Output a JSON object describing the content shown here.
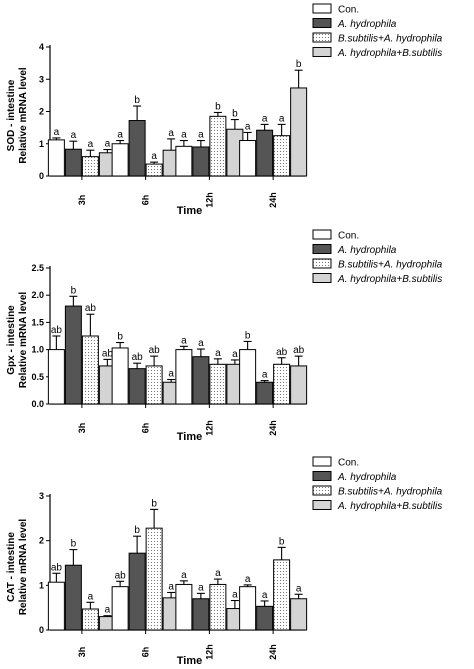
{
  "legend": [
    {
      "label": "Con.",
      "fill": "#ffffff",
      "pattern": "none",
      "italic": false
    },
    {
      "label": "A. hydrophila",
      "fill": "#555555",
      "pattern": "none",
      "italic": true
    },
    {
      "label": "B.subtilis+A. hydrophila",
      "fill": "#ffffff",
      "pattern": "dots",
      "italic": true
    },
    {
      "label": "A. hydrophila+B.subtilis",
      "fill": "#d4d4d4",
      "pattern": "none",
      "italic": true
    }
  ],
  "chart_data": [
    {
      "type": "bar",
      "ylabel_line1": "SOD - intestine",
      "ylabel_line2": "Relative mRNA level",
      "xlabel": "Time",
      "categories": [
        "3h",
        "6h",
        "12h",
        "24h"
      ],
      "ylim": [
        0,
        4
      ],
      "yticks": [
        0,
        1,
        2,
        3,
        4
      ],
      "series": [
        {
          "values": [
            1.12,
            1.0,
            0.92,
            1.1
          ],
          "errors": [
            0.06,
            0.1,
            0.18,
            0.25
          ],
          "sig": [
            "a",
            "a",
            "a",
            "a"
          ]
        },
        {
          "values": [
            0.83,
            1.72,
            0.9,
            1.42
          ],
          "errors": [
            0.25,
            0.45,
            0.2,
            0.18
          ],
          "sig": [
            "a",
            "b",
            "a",
            "a"
          ]
        },
        {
          "values": [
            0.6,
            0.37,
            1.85,
            1.25
          ],
          "errors": [
            0.2,
            0.06,
            0.12,
            0.35
          ],
          "sig": [
            "a",
            "a",
            "b",
            "a"
          ]
        },
        {
          "values": [
            0.72,
            0.8,
            1.45,
            2.73
          ],
          "errors": [
            0.1,
            0.35,
            0.3,
            0.55
          ],
          "sig": [
            "a",
            "a",
            "b",
            "b"
          ]
        }
      ]
    },
    {
      "type": "bar",
      "ylabel_line1": "Gpx - intestine",
      "ylabel_line2": "Relative mRNA level",
      "xlabel": "Time",
      "categories": [
        "3h",
        "6h",
        "12h",
        "24h"
      ],
      "ylim": [
        0,
        2.5
      ],
      "yticks": [
        0.0,
        0.5,
        1.0,
        1.5,
        2.0,
        2.5
      ],
      "series": [
        {
          "values": [
            1.0,
            1.03,
            1.0,
            1.0
          ],
          "errors": [
            0.25,
            0.1,
            0.06,
            0.15
          ],
          "sig": [
            "ab",
            "b",
            "a",
            "b"
          ]
        },
        {
          "values": [
            1.8,
            0.65,
            0.87,
            0.4
          ],
          "errors": [
            0.18,
            0.1,
            0.14,
            0.03
          ],
          "sig": [
            "b",
            "ab",
            "a",
            "a"
          ]
        },
        {
          "values": [
            1.25,
            0.7,
            0.73,
            0.73
          ],
          "errors": [
            0.4,
            0.18,
            0.1,
            0.12
          ],
          "sig": [
            "ab",
            "ab",
            "a",
            "ab"
          ]
        },
        {
          "values": [
            0.7,
            0.4,
            0.73,
            0.7
          ],
          "errors": [
            0.12,
            0.05,
            0.08,
            0.18
          ],
          "sig": [
            "ab",
            "a",
            "a",
            "ab"
          ]
        }
      ]
    },
    {
      "type": "bar",
      "ylabel_line1": "CAT - intestine",
      "ylabel_line2": "Relative mRNA level",
      "xlabel": "Time",
      "categories": [
        "3h",
        "6h",
        "12h",
        "24h"
      ],
      "ylim": [
        0,
        3
      ],
      "yticks": [
        0,
        1,
        2,
        3
      ],
      "series": [
        {
          "values": [
            1.07,
            0.97,
            1.02,
            0.97
          ],
          "errors": [
            0.2,
            0.12,
            0.08,
            0.04
          ],
          "sig": [
            "ab",
            "ab",
            "a",
            "a"
          ]
        },
        {
          "values": [
            1.45,
            1.72,
            0.7,
            0.53
          ],
          "errors": [
            0.35,
            0.38,
            0.12,
            0.12
          ],
          "sig": [
            "b",
            "b",
            "a",
            "a"
          ]
        },
        {
          "values": [
            0.47,
            2.28,
            1.02,
            1.57
          ],
          "errors": [
            0.15,
            0.42,
            0.12,
            0.28
          ],
          "sig": [
            "a",
            "b",
            "a",
            "b"
          ]
        },
        {
          "values": [
            0.3,
            0.72,
            0.48,
            0.7
          ],
          "errors": [
            0.02,
            0.12,
            0.18,
            0.1
          ],
          "sig": [
            "a",
            "a",
            "a",
            "a"
          ]
        }
      ]
    }
  ]
}
